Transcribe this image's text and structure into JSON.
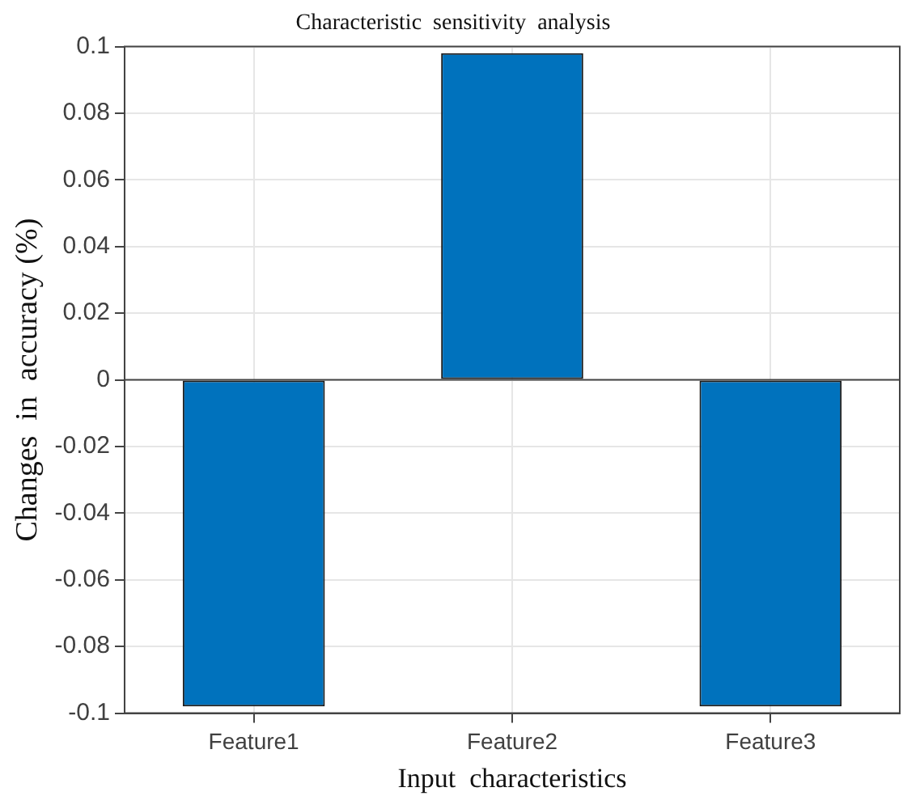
{
  "chart_data": {
    "type": "bar",
    "title": "Characteristic  sensitivity  analysis",
    "xlabel": "Input  characteristics",
    "ylabel": "Changes  in  accuracy (%)",
    "categories": [
      "Feature1",
      "Feature2",
      "Feature3"
    ],
    "values": [
      -0.098,
      0.098,
      -0.098
    ],
    "color": "#0072bd",
    "ylim": [
      -0.1,
      0.1
    ],
    "yticks": [
      -0.1,
      -0.08,
      -0.06,
      -0.04,
      -0.02,
      0,
      0.02,
      0.04,
      0.06,
      0.08,
      0.1
    ],
    "grid": true
  }
}
